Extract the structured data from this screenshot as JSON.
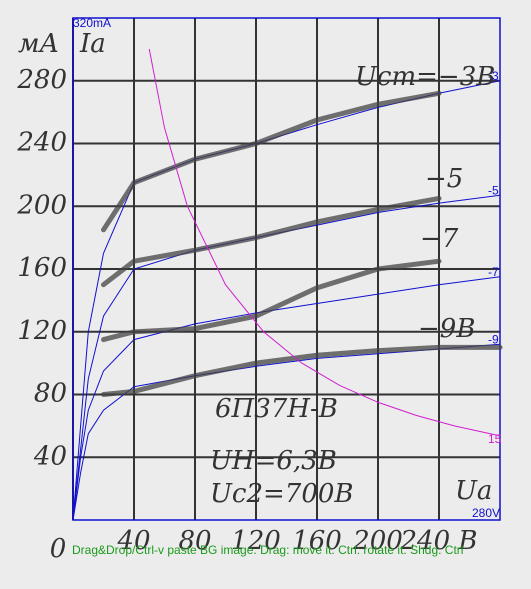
{
  "chart_data": {
    "type": "line",
    "x": [
      0,
      5,
      10,
      20,
      40,
      80,
      120,
      160,
      200,
      240,
      280
    ],
    "xlim": [
      0,
      280
    ],
    "ylim": [
      0,
      320
    ],
    "xticks": [
      0,
      40,
      80,
      120,
      160,
      200,
      {
        "value": 240,
        "label": "240 B"
      }
    ],
    "yticks": [
      40,
      80,
      120,
      160,
      200,
      240,
      280
    ],
    "y_origin_label": "0",
    "y_limit_label": "320mA",
    "x_limit_label": "280V",
    "y_unit_label": "мА",
    "y_axis_label": "Ia",
    "x_axis_label": "Ua",
    "annotations": [
      "6П37Н-В",
      "UН=6,3В",
      "Uс2=700В"
    ],
    "status_text": "Drag&Drop/Ctrl-v paste BG image. Drag: move it. Ctrl: rotate it. Shdg. Ctrl",
    "series": [
      {
        "name": "-3",
        "color": "#1010d0",
        "values": [
          0,
          60,
          120,
          170,
          215,
          230,
          240,
          252,
          263,
          272,
          280
        ]
      },
      {
        "name": "-5",
        "color": "#1010d0",
        "values": [
          0,
          45,
          90,
          130,
          160,
          172,
          180,
          188,
          196,
          202,
          207
        ]
      },
      {
        "name": "-7",
        "color": "#1010d0",
        "values": [
          0,
          40,
          70,
          95,
          115,
          125,
          132,
          138,
          144,
          150,
          155
        ]
      },
      {
        "name": "-9",
        "color": "#1010d0",
        "values": [
          0,
          30,
          55,
          70,
          85,
          92,
          98,
          103,
          106,
          109,
          112
        ]
      },
      {
        "name": "Uст=−3В",
        "color": "#444444",
        "values": [
          null,
          null,
          null,
          185,
          215,
          230,
          240,
          255,
          265,
          272,
          null
        ]
      },
      {
        "name": "−5",
        "color": "#444444",
        "values": [
          null,
          null,
          null,
          150,
          165,
          172,
          180,
          190,
          198,
          205,
          null
        ]
      },
      {
        "name": "−7",
        "color": "#444444",
        "values": [
          null,
          null,
          null,
          115,
          120,
          122,
          130,
          148,
          160,
          165,
          null
        ]
      },
      {
        "name": "−9В",
        "color": "#444444",
        "values": [
          null,
          null,
          null,
          80,
          82,
          92,
          100,
          105,
          108,
          110,
          110
        ]
      },
      {
        "name": "15",
        "color": "#d020d0",
        "x": [
          50,
          60,
          75,
          100,
          125,
          150,
          175,
          200,
          225,
          250,
          280
        ],
        "values": [
          300,
          250,
          200,
          150,
          120,
          100,
          85.7,
          75,
          66.7,
          60,
          53.6
        ]
      }
    ]
  }
}
